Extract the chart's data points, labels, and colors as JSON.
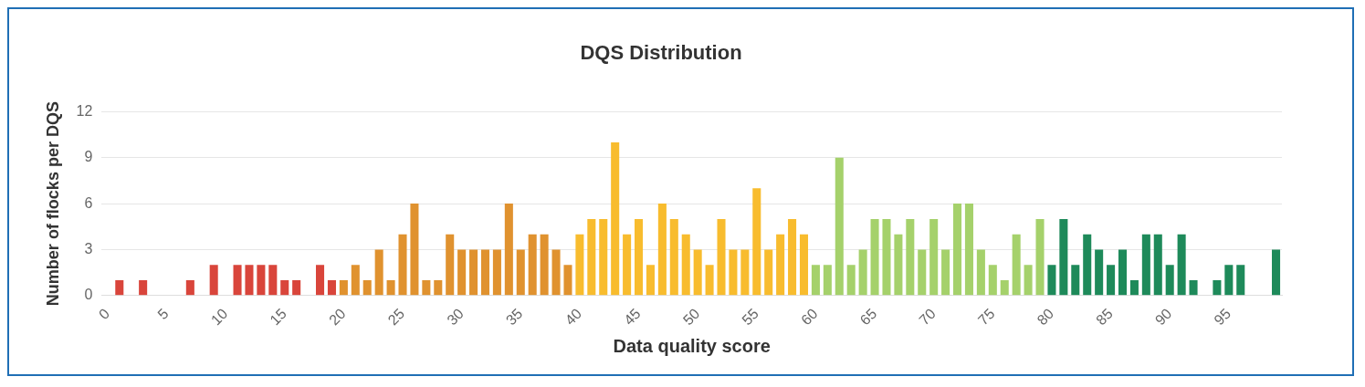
{
  "chart_data": {
    "type": "bar",
    "title": "DQS Distribution",
    "xlabel": "Data quality score",
    "ylabel": "Number of flocks per DQS",
    "categories": [
      "0",
      null,
      null,
      null,
      null,
      "5",
      null,
      null,
      null,
      null,
      "10",
      null,
      null,
      null,
      null,
      "15",
      null,
      null,
      null,
      null,
      "20",
      null,
      null,
      null,
      null,
      "25",
      null,
      null,
      null,
      null,
      "30",
      null,
      null,
      null,
      null,
      "35",
      null,
      null,
      null,
      null,
      "40",
      null,
      null,
      null,
      null,
      "45",
      null,
      null,
      null,
      null,
      "50",
      null,
      null,
      null,
      null,
      "55",
      null,
      null,
      null,
      null,
      "60",
      null,
      null,
      null,
      null,
      "65",
      null,
      null,
      null,
      null,
      "70",
      null,
      null,
      null,
      null,
      "75",
      null,
      null,
      null,
      null,
      "80",
      null,
      null,
      null,
      null,
      "85",
      null,
      null,
      null,
      null,
      "90",
      null,
      null,
      null,
      null,
      "95",
      null,
      null,
      null,
      null
    ],
    "values": [
      0,
      1,
      0,
      1,
      0,
      0,
      0,
      1,
      0,
      2,
      0,
      2,
      2,
      2,
      2,
      1,
      1,
      0,
      2,
      1,
      1,
      2,
      1,
      3,
      1,
      4,
      6,
      1,
      1,
      4,
      3,
      3,
      3,
      3,
      6,
      3,
      4,
      4,
      3,
      2,
      4,
      5,
      5,
      10,
      4,
      5,
      2,
      6,
      5,
      4,
      3,
      2,
      5,
      3,
      3,
      7,
      3,
      4,
      5,
      4,
      2,
      2,
      9,
      2,
      3,
      5,
      5,
      4,
      5,
      3,
      5,
      3,
      6,
      6,
      3,
      2,
      1,
      4,
      2,
      5,
      2,
      5,
      2,
      4,
      3,
      2,
      3,
      1,
      4,
      4,
      2,
      4,
      1,
      0,
      1,
      2,
      2,
      0,
      0,
      3
    ],
    "colors": [
      "#d9453b",
      "#d9453b",
      "#d9453b",
      "#d9453b",
      "#d9453b",
      "#d9453b",
      "#d9453b",
      "#d9453b",
      "#d9453b",
      "#d9453b",
      "#d9453b",
      "#d9453b",
      "#d9453b",
      "#d9453b",
      "#d9453b",
      "#d9453b",
      "#d9453b",
      "#d9453b",
      "#d9453b",
      "#d9453b",
      "#e0922f",
      "#e0922f",
      "#e0922f",
      "#e0922f",
      "#e0922f",
      "#e0922f",
      "#e0922f",
      "#e0922f",
      "#e0922f",
      "#e0922f",
      "#e0922f",
      "#e0922f",
      "#e0922f",
      "#e0922f",
      "#e0922f",
      "#e0922f",
      "#e0922f",
      "#e0922f",
      "#e0922f",
      "#e0922f",
      "#f8bc2e",
      "#f8bc2e",
      "#f8bc2e",
      "#f8bc2e",
      "#f8bc2e",
      "#f8bc2e",
      "#f8bc2e",
      "#f8bc2e",
      "#f8bc2e",
      "#f8bc2e",
      "#f8bc2e",
      "#f8bc2e",
      "#f8bc2e",
      "#f8bc2e",
      "#f8bc2e",
      "#f8bc2e",
      "#f8bc2e",
      "#f8bc2e",
      "#f8bc2e",
      "#f8bc2e",
      "#a5d16b",
      "#a5d16b",
      "#a5d16b",
      "#a5d16b",
      "#a5d16b",
      "#a5d16b",
      "#a5d16b",
      "#a5d16b",
      "#a5d16b",
      "#a5d16b",
      "#a5d16b",
      "#a5d16b",
      "#a5d16b",
      "#a5d16b",
      "#a5d16b",
      "#a5d16b",
      "#a5d16b",
      "#a5d16b",
      "#a5d16b",
      "#a5d16b",
      "#1e8a5a",
      "#1e8a5a",
      "#1e8a5a",
      "#1e8a5a",
      "#1e8a5a",
      "#1e8a5a",
      "#1e8a5a",
      "#1e8a5a",
      "#1e8a5a",
      "#1e8a5a",
      "#1e8a5a",
      "#1e8a5a",
      "#1e8a5a",
      "#1e8a5a",
      "#1e8a5a",
      "#1e8a5a",
      "#1e8a5a",
      "#1e8a5a",
      "#1e8a5a",
      "#1e8a5a"
    ],
    "ylim": [
      0,
      12
    ],
    "yticks": [
      0,
      3,
      6,
      9,
      12
    ],
    "grid": "y",
    "legend": false
  }
}
